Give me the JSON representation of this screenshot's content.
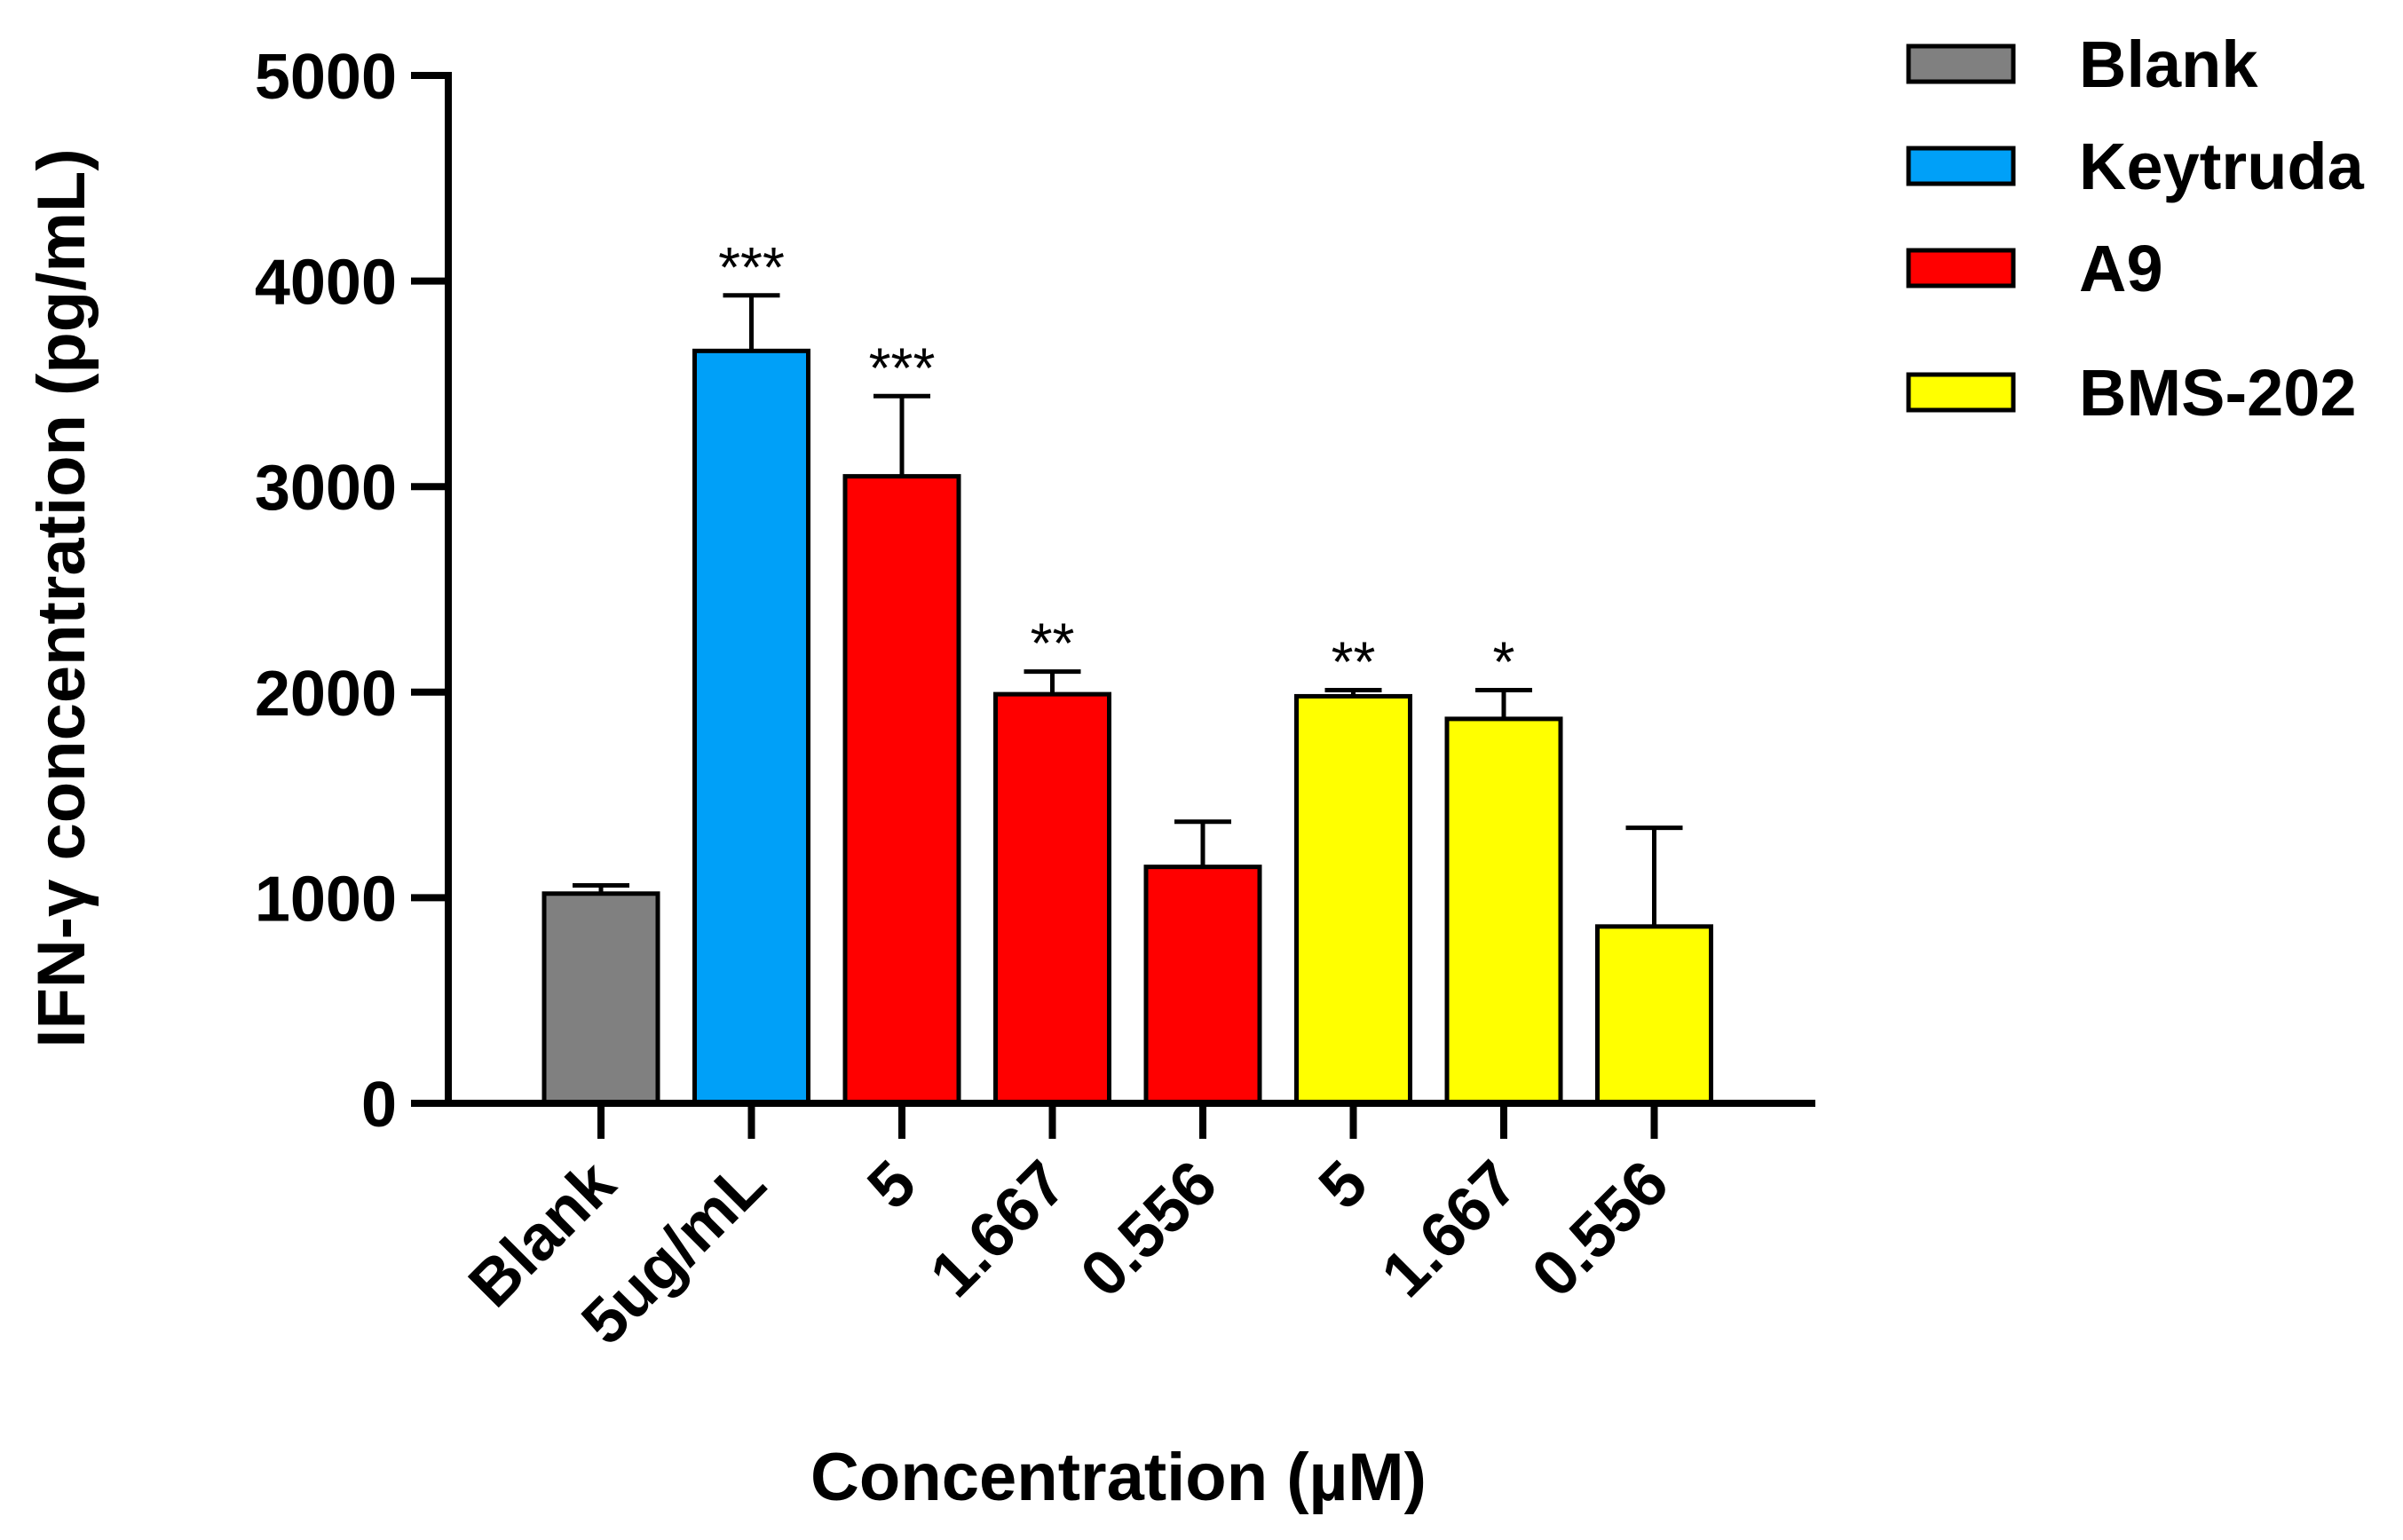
{
  "chart_data": {
    "type": "bar",
    "title": "",
    "xlabel": "Concentration (µM)",
    "ylabel": "IFN-γ concentration (pg/mL)",
    "ylim": [
      0,
      5000
    ],
    "yticks": [
      0,
      1000,
      2000,
      3000,
      4000,
      5000
    ],
    "grid": false,
    "legend_position": "top-right",
    "colors": {
      "Blank": "#808080",
      "Keytruda": "#00a0f8",
      "A9": "#ff0000",
      "BMS-202": "#ffff00"
    },
    "legend": [
      "Blank",
      "Keytruda",
      "A9",
      "BMS-202"
    ],
    "categories": [
      "Blank",
      "5ug/mL",
      "5",
      "1.667",
      "0.556",
      "5",
      "1.667",
      "0.556"
    ],
    "groups": [
      "Blank",
      "Keytruda",
      "A9",
      "A9",
      "A9",
      "BMS-202",
      "BMS-202",
      "BMS-202"
    ],
    "values": [
      1020,
      3660,
      3050,
      1990,
      1150,
      1980,
      1870,
      860
    ],
    "errors": [
      40,
      270,
      390,
      110,
      220,
      30,
      140,
      480
    ],
    "significance": [
      "",
      "***",
      "***",
      "**",
      "",
      "**",
      "*",
      ""
    ]
  }
}
